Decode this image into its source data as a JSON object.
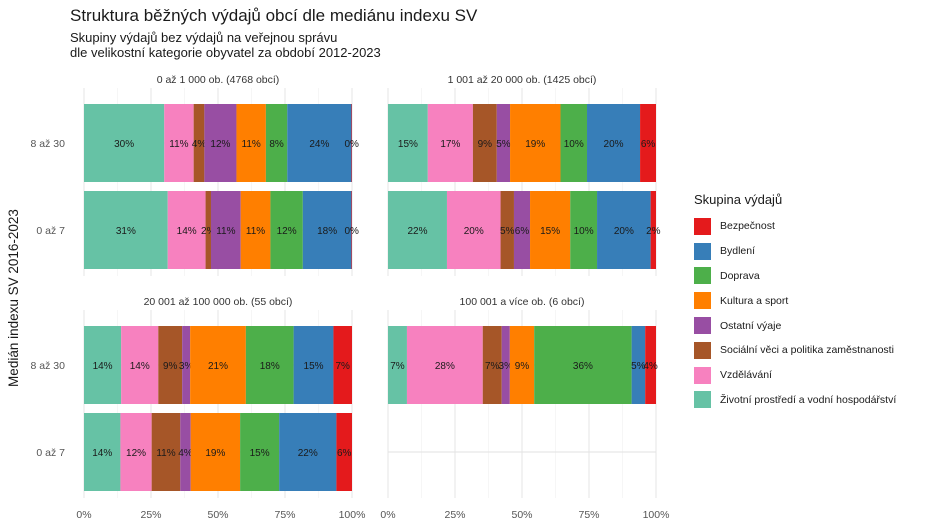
{
  "title": "Struktura běžných výdajů obcí dle mediánu indexu SV",
  "subtitle_lines": [
    "Skupiny výdajů bez výdajů na veřejnou správu",
    "dle velikostní kategorie obyvatel za období 2012-2023"
  ],
  "y_axis_label": "Medián indexu SV 2016-2023",
  "legend_title": "Skupina výdajů",
  "categories_order": [
    "Životní prostředí a vodní hospodářství",
    "Vzdělávání",
    "Sociální věci a politika zaměstnanosti",
    "Ostatní výaje",
    "Kultura a sport",
    "Doprava",
    "Bydlení",
    "Bezpečnost"
  ],
  "legend": [
    {
      "label": "Bezpečnost",
      "color": "#e41a1c"
    },
    {
      "label": "Bydlení",
      "color": "#377eb8"
    },
    {
      "label": "Doprava",
      "color": "#4daf4a"
    },
    {
      "label": "Kultura a sport",
      "color": "#ff7f00"
    },
    {
      "label": "Ostatní výaje",
      "color": "#984ea3"
    },
    {
      "label": "Sociální věci a politika zaměstnanosti",
      "color": "#a65628"
    },
    {
      "label": "Vzdělávání",
      "color": "#f781bf"
    },
    {
      "label": "Životní prostředí a vodní hospodářství",
      "color": "#66c2a5"
    }
  ],
  "chart_data": {
    "type": "bar",
    "orientation": "horizontal",
    "stacked": "percent",
    "x_ticks": [
      "0%",
      "25%",
      "50%",
      "75%",
      "100%"
    ],
    "xlim": [
      0,
      1
    ],
    "grid": true,
    "legend_position": "right",
    "row_categories": [
      "8 až 30",
      "0 až 7"
    ],
    "panels": [
      {
        "title": "0 až 1 000 ob. (4768 obcí)",
        "bars": [
          {
            "category": "8 až 30",
            "values": [
              30.0,
              11.0,
              4.0,
              12.0,
              11.0,
              8.0,
              24.0,
              0.2
            ],
            "labels": [
              "30%",
              "11%",
              "4%",
              "12%",
              "11%",
              "8%",
              "24%",
              "0%"
            ]
          },
          {
            "category": "0 až 7",
            "values": [
              31.0,
              14.0,
              2.0,
              11.0,
              11.0,
              12.0,
              18.0,
              0.2
            ],
            "labels": [
              "31%",
              "14%",
              "2%",
              "11%",
              "11%",
              "12%",
              "18%",
              "0%"
            ]
          }
        ]
      },
      {
        "title": "1 001 až 20 000 ob. (1425 obcí)",
        "bars": [
          {
            "category": "8 až 30",
            "values": [
              15.0,
              17.0,
              9.0,
              5.0,
              19.0,
              10.0,
              20.0,
              6.0
            ],
            "labels": [
              "15%",
              "17%",
              "9%",
              "5%",
              "19%",
              "10%",
              "20%",
              "6%"
            ]
          },
          {
            "category": "0 až 7",
            "values": [
              22.0,
              20.0,
              5.0,
              6.0,
              15.0,
              10.0,
              20.0,
              2.0
            ],
            "labels": [
              "22%",
              "20%",
              "5%",
              "6%",
              "15%",
              "10%",
              "20%",
              "2%"
            ]
          }
        ]
      },
      {
        "title": "20 001 až 100 000 ob. (55 obcí)",
        "bars": [
          {
            "category": "8 až 30",
            "values": [
              14.0,
              14.0,
              9.0,
              3.0,
              21.0,
              18.0,
              15.0,
              7.0
            ],
            "labels": [
              "14%",
              "14%",
              "9%",
              "3%",
              "21%",
              "18%",
              "15%",
              "7%"
            ]
          },
          {
            "category": "0 až 7",
            "values": [
              14.0,
              12.0,
              11.0,
              4.0,
              19.0,
              15.0,
              22.0,
              6.0
            ],
            "labels": [
              "14%",
              "12%",
              "11%",
              "4%",
              "19%",
              "15%",
              "22%",
              "6%"
            ]
          }
        ]
      },
      {
        "title": "100 001 a více ob. (6 obcí)",
        "bars": [
          {
            "category": "8 až 30",
            "values": [
              7.0,
              28.0,
              7.0,
              3.0,
              9.0,
              36.0,
              5.0,
              4.0
            ],
            "labels": [
              "7%",
              "28%",
              "7%",
              "3%",
              "9%",
              "36%",
              "5%",
              "4%"
            ]
          }
        ]
      }
    ]
  }
}
